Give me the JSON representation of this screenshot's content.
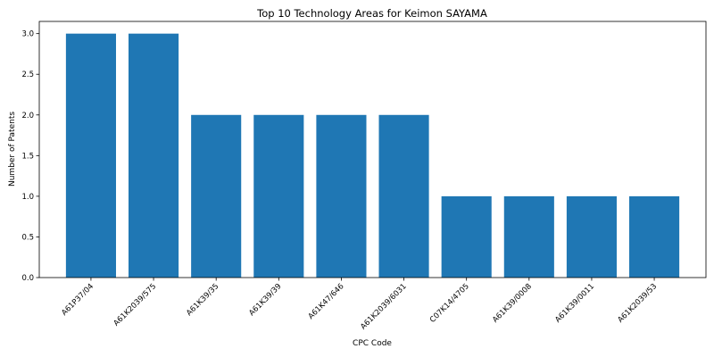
{
  "chart_data": {
    "type": "bar",
    "title": "Top 10 Technology Areas for Keimon SAYAMA",
    "xlabel": "CPC Code",
    "ylabel": "Number of Patents",
    "categories": [
      "A61P37/04",
      "A61K2039/575",
      "A61K39/35",
      "A61K39/39",
      "A61K47/646",
      "A61K2039/6031",
      "C07K14/4705",
      "A61K39/0008",
      "A61K39/0011",
      "A61K2039/53"
    ],
    "values": [
      3,
      3,
      2,
      2,
      2,
      2,
      1,
      1,
      1,
      1
    ],
    "ylim": [
      0,
      3.15
    ],
    "yticks": [
      0.0,
      0.5,
      1.0,
      1.5,
      2.0,
      2.5,
      3.0
    ],
    "ytick_labels": [
      "0.0",
      "0.5",
      "1.0",
      "1.5",
      "2.0",
      "2.5",
      "3.0"
    ],
    "grid": false,
    "bar_color": "#1f77b4"
  }
}
